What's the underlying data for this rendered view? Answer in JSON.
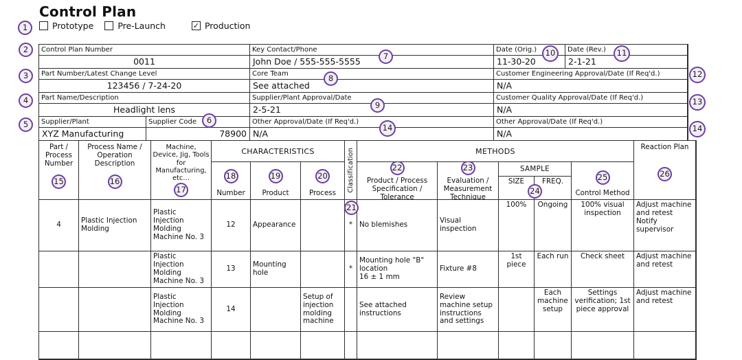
{
  "title": "Control Plan",
  "checkboxes": [
    {
      "label": "Prototype",
      "checked": false
    },
    {
      "label": "Pre-Launch",
      "checked": false
    },
    {
      "label": "Production",
      "checked": true
    }
  ],
  "check_glyph": "✓",
  "info": {
    "control_plan_number": {
      "label": "Control Plan Number",
      "value": "0011"
    },
    "part_number": {
      "label": "Part Number/Latest Change Level",
      "value": "123456 / 7-24-20"
    },
    "part_name": {
      "label": "Part Name/Description",
      "value": "Headlight lens"
    },
    "supplier_plant": {
      "label": "Supplier/Plant",
      "value": "XYZ Manufacturing"
    },
    "supplier_code": {
      "label": "Supplier Code",
      "value": "78900"
    },
    "key_contact": {
      "label": "Key Contact/Phone",
      "value": "John Doe / 555-555-5555"
    },
    "core_team": {
      "label": "Core Team",
      "value": "See attached"
    },
    "supplier_approval": {
      "label": "Supplier/Plant Approval/Date",
      "value": "2-5-21"
    },
    "other_approval_mid": {
      "label": "Other Approval/Date (If Req'd.)",
      "value": "N/A"
    },
    "date_orig": {
      "label": "Date (Orig.)",
      "value": "11-30-20"
    },
    "date_rev": {
      "label": "Date (Rev.)",
      "value": "2-1-21"
    },
    "cust_eng_approval": {
      "label": "Customer Engineering Approval/Date (If Req'd.)",
      "value": "N/A"
    },
    "cust_quality_approval": {
      "label": "Customer Quality Approval/Date (If Req'd.)",
      "value": "N/A"
    },
    "other_approval_right": {
      "label": "Other Approval/Date (If Req'd.)",
      "value": "N/A"
    }
  },
  "table": {
    "headers": {
      "part_process_number": "Part / Process Number",
      "process_name": "Process Name / Operation Description",
      "machine": "Machine, Device, Jig, Tools for Manufacturing, etc…",
      "characteristics": "CHARACTERISTICS",
      "number": "Number",
      "product": "Product",
      "process": "Process",
      "classification": "Classification",
      "methods": "METHODS",
      "spec_tolerance": "Product / Process Specification / Tolerance",
      "evaluation": "Evaluation / Measurement Technique",
      "sample": "SAMPLE",
      "size": "SIZE",
      "freq": "FREQ.",
      "control_method": "Control Method",
      "reaction_plan": "Reaction Plan"
    },
    "columns": [
      {
        "name": "part-process-number",
        "align": "center",
        "valign": "middle"
      },
      {
        "name": "process-name",
        "align": "left",
        "valign": "middle"
      },
      {
        "name": "machine-device",
        "align": "left",
        "valign": "middle"
      },
      {
        "name": "char-number",
        "align": "center",
        "valign": "middle"
      },
      {
        "name": "char-product",
        "align": "left",
        "valign": "middle"
      },
      {
        "name": "char-process",
        "align": "left",
        "valign": "middle"
      },
      {
        "name": "classification",
        "align": "center",
        "valign": "middle"
      },
      {
        "name": "spec-tolerance",
        "align": "left",
        "valign": "middle"
      },
      {
        "name": "evaluation",
        "align": "left",
        "valign": "middle"
      },
      {
        "name": "sample-size",
        "align": "center",
        "valign": "top"
      },
      {
        "name": "sample-freq",
        "align": "center",
        "valign": "top"
      },
      {
        "name": "control-method",
        "align": "center",
        "valign": "top"
      },
      {
        "name": "reaction-plan",
        "align": "left",
        "valign": "top"
      }
    ],
    "rows": [
      [
        "4",
        "Plastic Injection Molding",
        "Plastic Injection Molding Machine No. 3",
        "12",
        "Appearance",
        "",
        "*",
        "No blemishes",
        "Visual inspection",
        "100%",
        "Ongoing",
        "100% visual inspection",
        "Adjust machine and retest\nNotify supervisor"
      ],
      [
        "",
        "",
        "Plastic Injection Molding Machine No. 3",
        "13",
        "Mounting hole",
        "",
        "*",
        "Mounting hole \"B\" location\n16 ± 1 mm",
        "Fixture #8",
        "1st piece",
        "Each run",
        "Check sheet",
        "Adjust machine and retest"
      ],
      [
        "",
        "",
        "Plastic Injection Molding Machine No. 3",
        "14",
        "",
        "Setup of injection molding machine",
        "",
        "See attached instructions",
        "Review machine setup instructions and settings",
        "",
        "Each machine setup",
        "Settings verification; 1st piece approval",
        "Adjust machine and retest"
      ],
      [
        "",
        "",
        "",
        "",
        "",
        "",
        "",
        "",
        "",
        "",
        "",
        "",
        ""
      ]
    ]
  },
  "callouts": {
    "n1": "1",
    "n2": "2",
    "n3": "3",
    "n4": "4",
    "n5": "5",
    "n6": "6",
    "n7": "7",
    "n8": "8",
    "n9": "9",
    "n10": "10",
    "n11": "11",
    "n12": "12",
    "n13": "13",
    "n14": "14",
    "n15": "15",
    "n16": "16",
    "n17": "17",
    "n18": "18",
    "n19": "19",
    "n20": "20",
    "n21": "21",
    "n22": "22",
    "n23": "23",
    "n24": "24",
    "n25": "25",
    "n26": "26"
  },
  "accent_color": "#6a3fa0"
}
